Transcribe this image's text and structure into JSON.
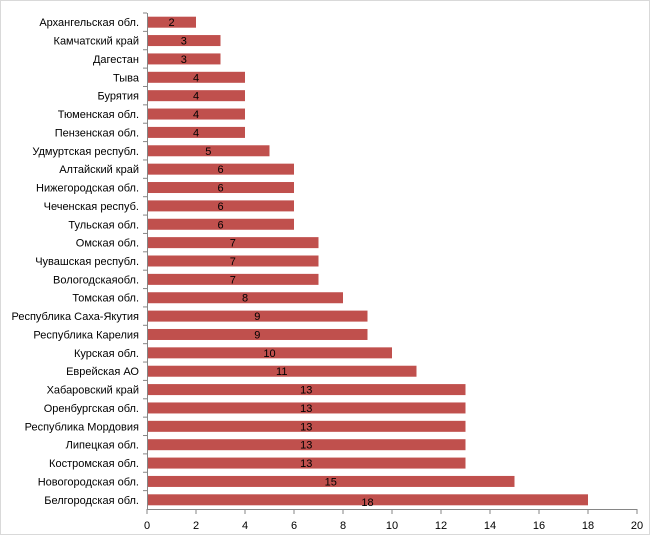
{
  "chart_data": {
    "type": "bar",
    "orientation": "horizontal",
    "categories": [
      "Архангельская обл.",
      "Камчатский край",
      "Дагестан",
      "Тыва",
      "Бурятия",
      "Тюменская обл.",
      "Пензенская обл.",
      "Удмуртская республ.",
      "Алтайский край",
      "Нижегородская обл.",
      "Чеченская респуб.",
      "Тульская обл.",
      "Омская обл.",
      "Чувашская республ.",
      "Вологодскаяобл.",
      "Томская обл.",
      "Республика  Саха-Якутия",
      "Республика Карелия",
      "Курская обл.",
      "Еврейская АО",
      "Хабаровский край",
      "Оренбургская обл.",
      "Республика Мордовия",
      "Липецкая обл.",
      "Костромская обл.",
      "Новогородская обл.",
      "Белгородская обл."
    ],
    "values": [
      2,
      3,
      3,
      4,
      4,
      4,
      4,
      5,
      6,
      6,
      6,
      6,
      7,
      7,
      7,
      8,
      9,
      9,
      10,
      11,
      13,
      13,
      13,
      13,
      13,
      15,
      18
    ],
    "data_labels": [
      "2",
      "3",
      "3",
      "4",
      "4",
      "4",
      "4",
      "5",
      "6",
      "6",
      "6",
      "6",
      "7",
      "7",
      "7",
      "8",
      "9",
      "9",
      "10",
      "11",
      "13",
      "13",
      "13",
      "13",
      "13",
      "15",
      "18"
    ],
    "xlim": [
      0,
      20
    ],
    "x_ticks": [
      0,
      2,
      4,
      6,
      8,
      10,
      12,
      14,
      16,
      18,
      20
    ],
    "x_tick_labels": [
      "0",
      "2",
      "4",
      "6",
      "8",
      "10",
      "12",
      "14",
      "16",
      "18",
      "20"
    ],
    "title": "",
    "xlabel": "",
    "ylabel": "",
    "grid": false,
    "legend": "none",
    "bar_color": "#c0504d"
  }
}
